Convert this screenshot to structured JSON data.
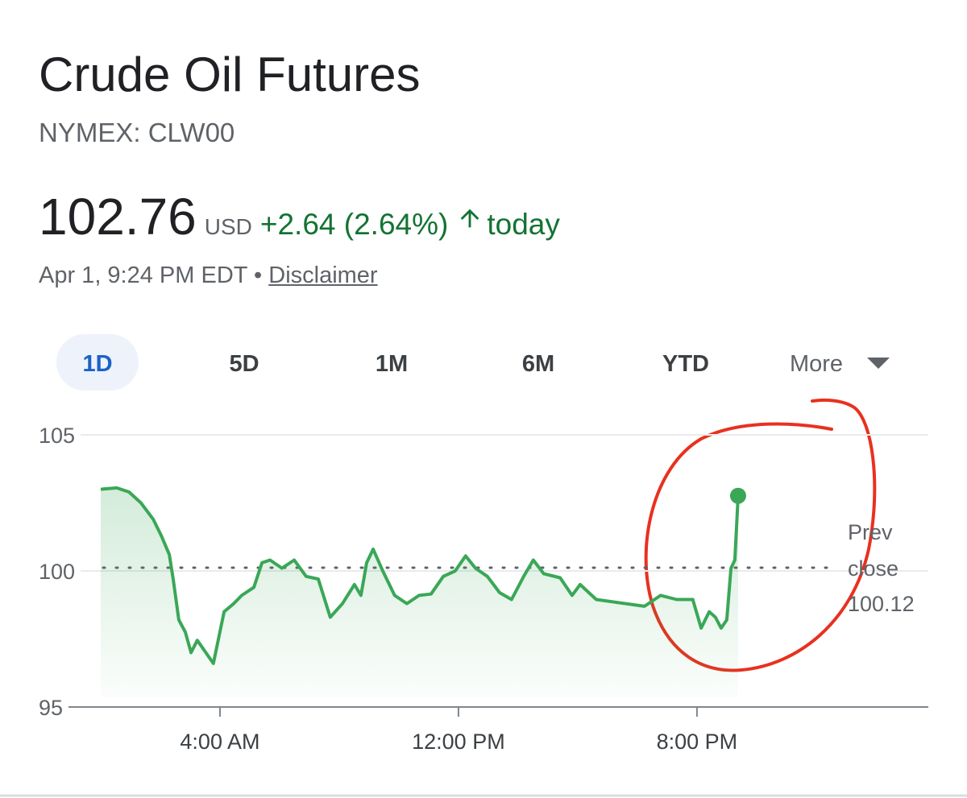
{
  "header": {
    "title": "Crude Oil Futures",
    "ticker": "NYMEX: CLW00",
    "price": "102.76",
    "currency": "USD",
    "change": "+2.64 (2.64%)",
    "period": "today",
    "timestamp": "Apr 1, 9:24 PM EDT",
    "separator": "•",
    "disclaimer": "Disclaimer"
  },
  "tabs": [
    "1D",
    "5D",
    "1M",
    "6M",
    "YTD",
    "More"
  ],
  "selected_tab": "1D",
  "chart_data": {
    "type": "line",
    "x": [
      0,
      0.54,
      0.95,
      1.35,
      1.76,
      2.03,
      2.3,
      2.43,
      2.62,
      2.84,
      3.03,
      3.24,
      3.43,
      3.78,
      3.97,
      4.14,
      4.46,
      4.73,
      5.14,
      5.41,
      5.68,
      6.08,
      6.49,
      6.89,
      7.3,
      7.7,
      8.11,
      8.51,
      8.73,
      8.92,
      9.14,
      9.46,
      9.86,
      10.27,
      10.68,
      11.08,
      11.49,
      11.89,
      12.24,
      12.57,
      12.97,
      13.38,
      13.78,
      14.19,
      14.51,
      14.86,
      15.41,
      15.81,
      16.08,
      16.62,
      18.24,
      18.78,
      19.32,
      19.86,
      20.14,
      20.41,
      20.62,
      20.81,
      21.0,
      21.14,
      21.27,
      21.38
    ],
    "series": [
      {
        "name": "Crude Oil Futures",
        "color": "#3aa757",
        "values": [
          103.0,
          103.05,
          102.9,
          102.5,
          101.9,
          101.3,
          100.6,
          99.7,
          98.2,
          97.75,
          97.0,
          97.45,
          97.15,
          96.6,
          97.6,
          98.5,
          98.8,
          99.1,
          99.4,
          100.3,
          100.4,
          100.1,
          100.4,
          99.8,
          99.7,
          98.3,
          98.8,
          99.5,
          99.1,
          100.3,
          100.8,
          100.0,
          99.1,
          98.8,
          99.1,
          99.15,
          99.8,
          100.0,
          100.55,
          100.1,
          99.8,
          99.2,
          98.95,
          99.8,
          100.4,
          99.9,
          99.75,
          99.1,
          99.5,
          98.95,
          98.7,
          99.1,
          98.95,
          98.95,
          97.9,
          98.5,
          98.3,
          97.9,
          98.2,
          100.1,
          100.4,
          102.76
        ]
      }
    ],
    "xlim": [
      -1.08,
      27.76
    ],
    "xticks": [
      {
        "value": 4,
        "label": "4:00 AM"
      },
      {
        "value": 12,
        "label": "12:00 PM"
      },
      {
        "value": 20,
        "label": "8:00 PM"
      }
    ],
    "ylim": [
      95,
      105
    ],
    "yticks": [
      95,
      100,
      105
    ],
    "grid": true,
    "reference_line": {
      "label_1": "Prev",
      "label_2": "close",
      "value": 100.12
    }
  }
}
